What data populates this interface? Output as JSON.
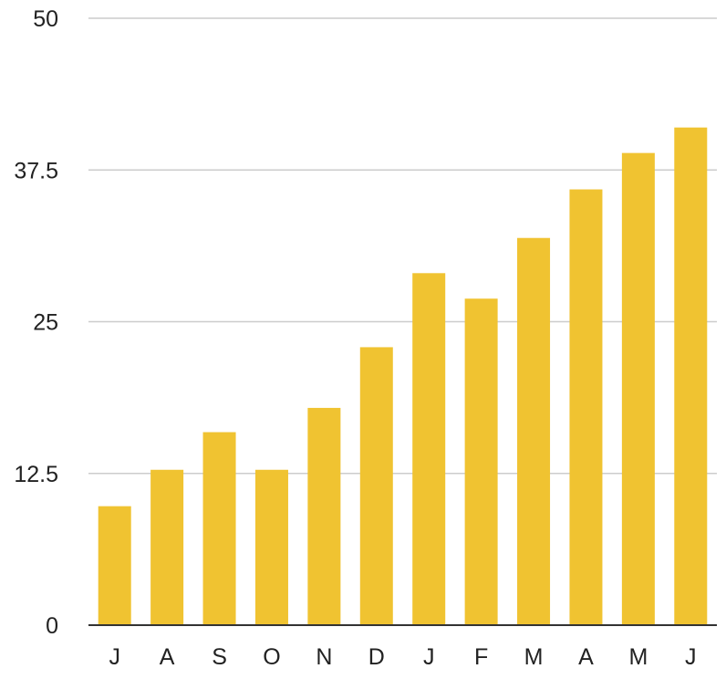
{
  "chart_data": {
    "type": "bar",
    "title": "",
    "xlabel": "",
    "ylabel": "",
    "categories": [
      "J",
      "A",
      "S",
      "O",
      "N",
      "D",
      "J",
      "F",
      "M",
      "A",
      "M",
      "J"
    ],
    "values": [
      9.8,
      12.8,
      15.9,
      12.8,
      17.9,
      22.9,
      29.0,
      26.9,
      31.9,
      35.9,
      38.9,
      41.0
    ],
    "ylim": [
      0,
      50
    ],
    "yticks": [
      "0",
      "12.5",
      "25",
      "37.5",
      "50"
    ],
    "ytick_values": [
      0,
      12.5,
      25,
      37.5,
      50
    ],
    "grid": true,
    "legend": "none",
    "bar_color": "#f0c331",
    "grid_color": "#cccccc",
    "axis_color": "#333333"
  }
}
